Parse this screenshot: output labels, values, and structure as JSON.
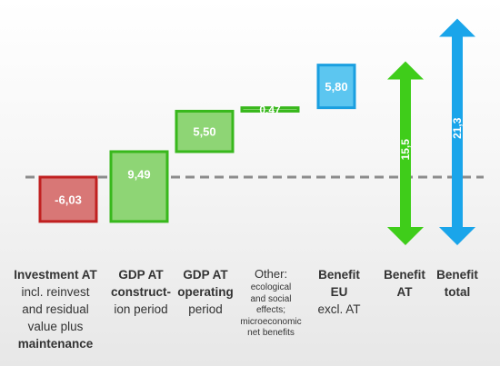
{
  "chart_data": {
    "type": "waterfall",
    "title": "",
    "xlabel": "",
    "ylabel": "",
    "grid": false,
    "baseline": 0,
    "bars": [
      {
        "category": "Investment AT incl. reinvest and residual value plus maintenance",
        "value": -6.03,
        "label": "-6,03",
        "color": "#d87776",
        "border": "#c02020"
      },
      {
        "category": "GDP AT construct-ion period",
        "value": 9.49,
        "label": "9,49",
        "color": "#8ed575",
        "border": "#38b81c"
      },
      {
        "category": "GDP AT operating period",
        "value": 5.5,
        "label": "5,50",
        "color": "#8ed575",
        "border": "#38b81c"
      },
      {
        "category": "Other: ecological and social effects; microeconomic net benefits",
        "value": 0.47,
        "label": "0,47",
        "color": "#8ed575",
        "border": "#38b81c"
      },
      {
        "category": "Benefit EU excl. AT",
        "value": 5.8,
        "label": "5,80",
        "color": "#5cc6f0",
        "border": "#1a9fe0"
      }
    ],
    "arrows": [
      {
        "category": "Benefit AT",
        "value": 15.5,
        "label": "15,5",
        "color": "#3fcd1a"
      },
      {
        "category": "Benefit total",
        "value": 21.3,
        "label": "21,3",
        "color": "#1aa5ea"
      }
    ]
  },
  "categories": {
    "c0": {
      "l1": "Investment AT",
      "l2": "incl. reinvest",
      "l3": "and residual",
      "l4": "value plus",
      "l5": "maintenance"
    },
    "c1": {
      "l1": "GDP AT",
      "l2": "construct-",
      "l3": "ion period"
    },
    "c2": {
      "l1": "GDP AT",
      "l2": "operating",
      "l3": "period"
    },
    "c3": {
      "l1": "Other:",
      "l2": "ecological",
      "l3": "and social",
      "l4": "effects;",
      "l5": "microeconomic",
      "l6": "net benefits"
    },
    "c4": {
      "l1": "Benefit",
      "l2": "EU",
      "l3": "excl. AT"
    },
    "c5": {
      "l1": "Benefit",
      "l2": "AT"
    },
    "c6": {
      "l1": "Benefit",
      "l2": "total"
    }
  }
}
